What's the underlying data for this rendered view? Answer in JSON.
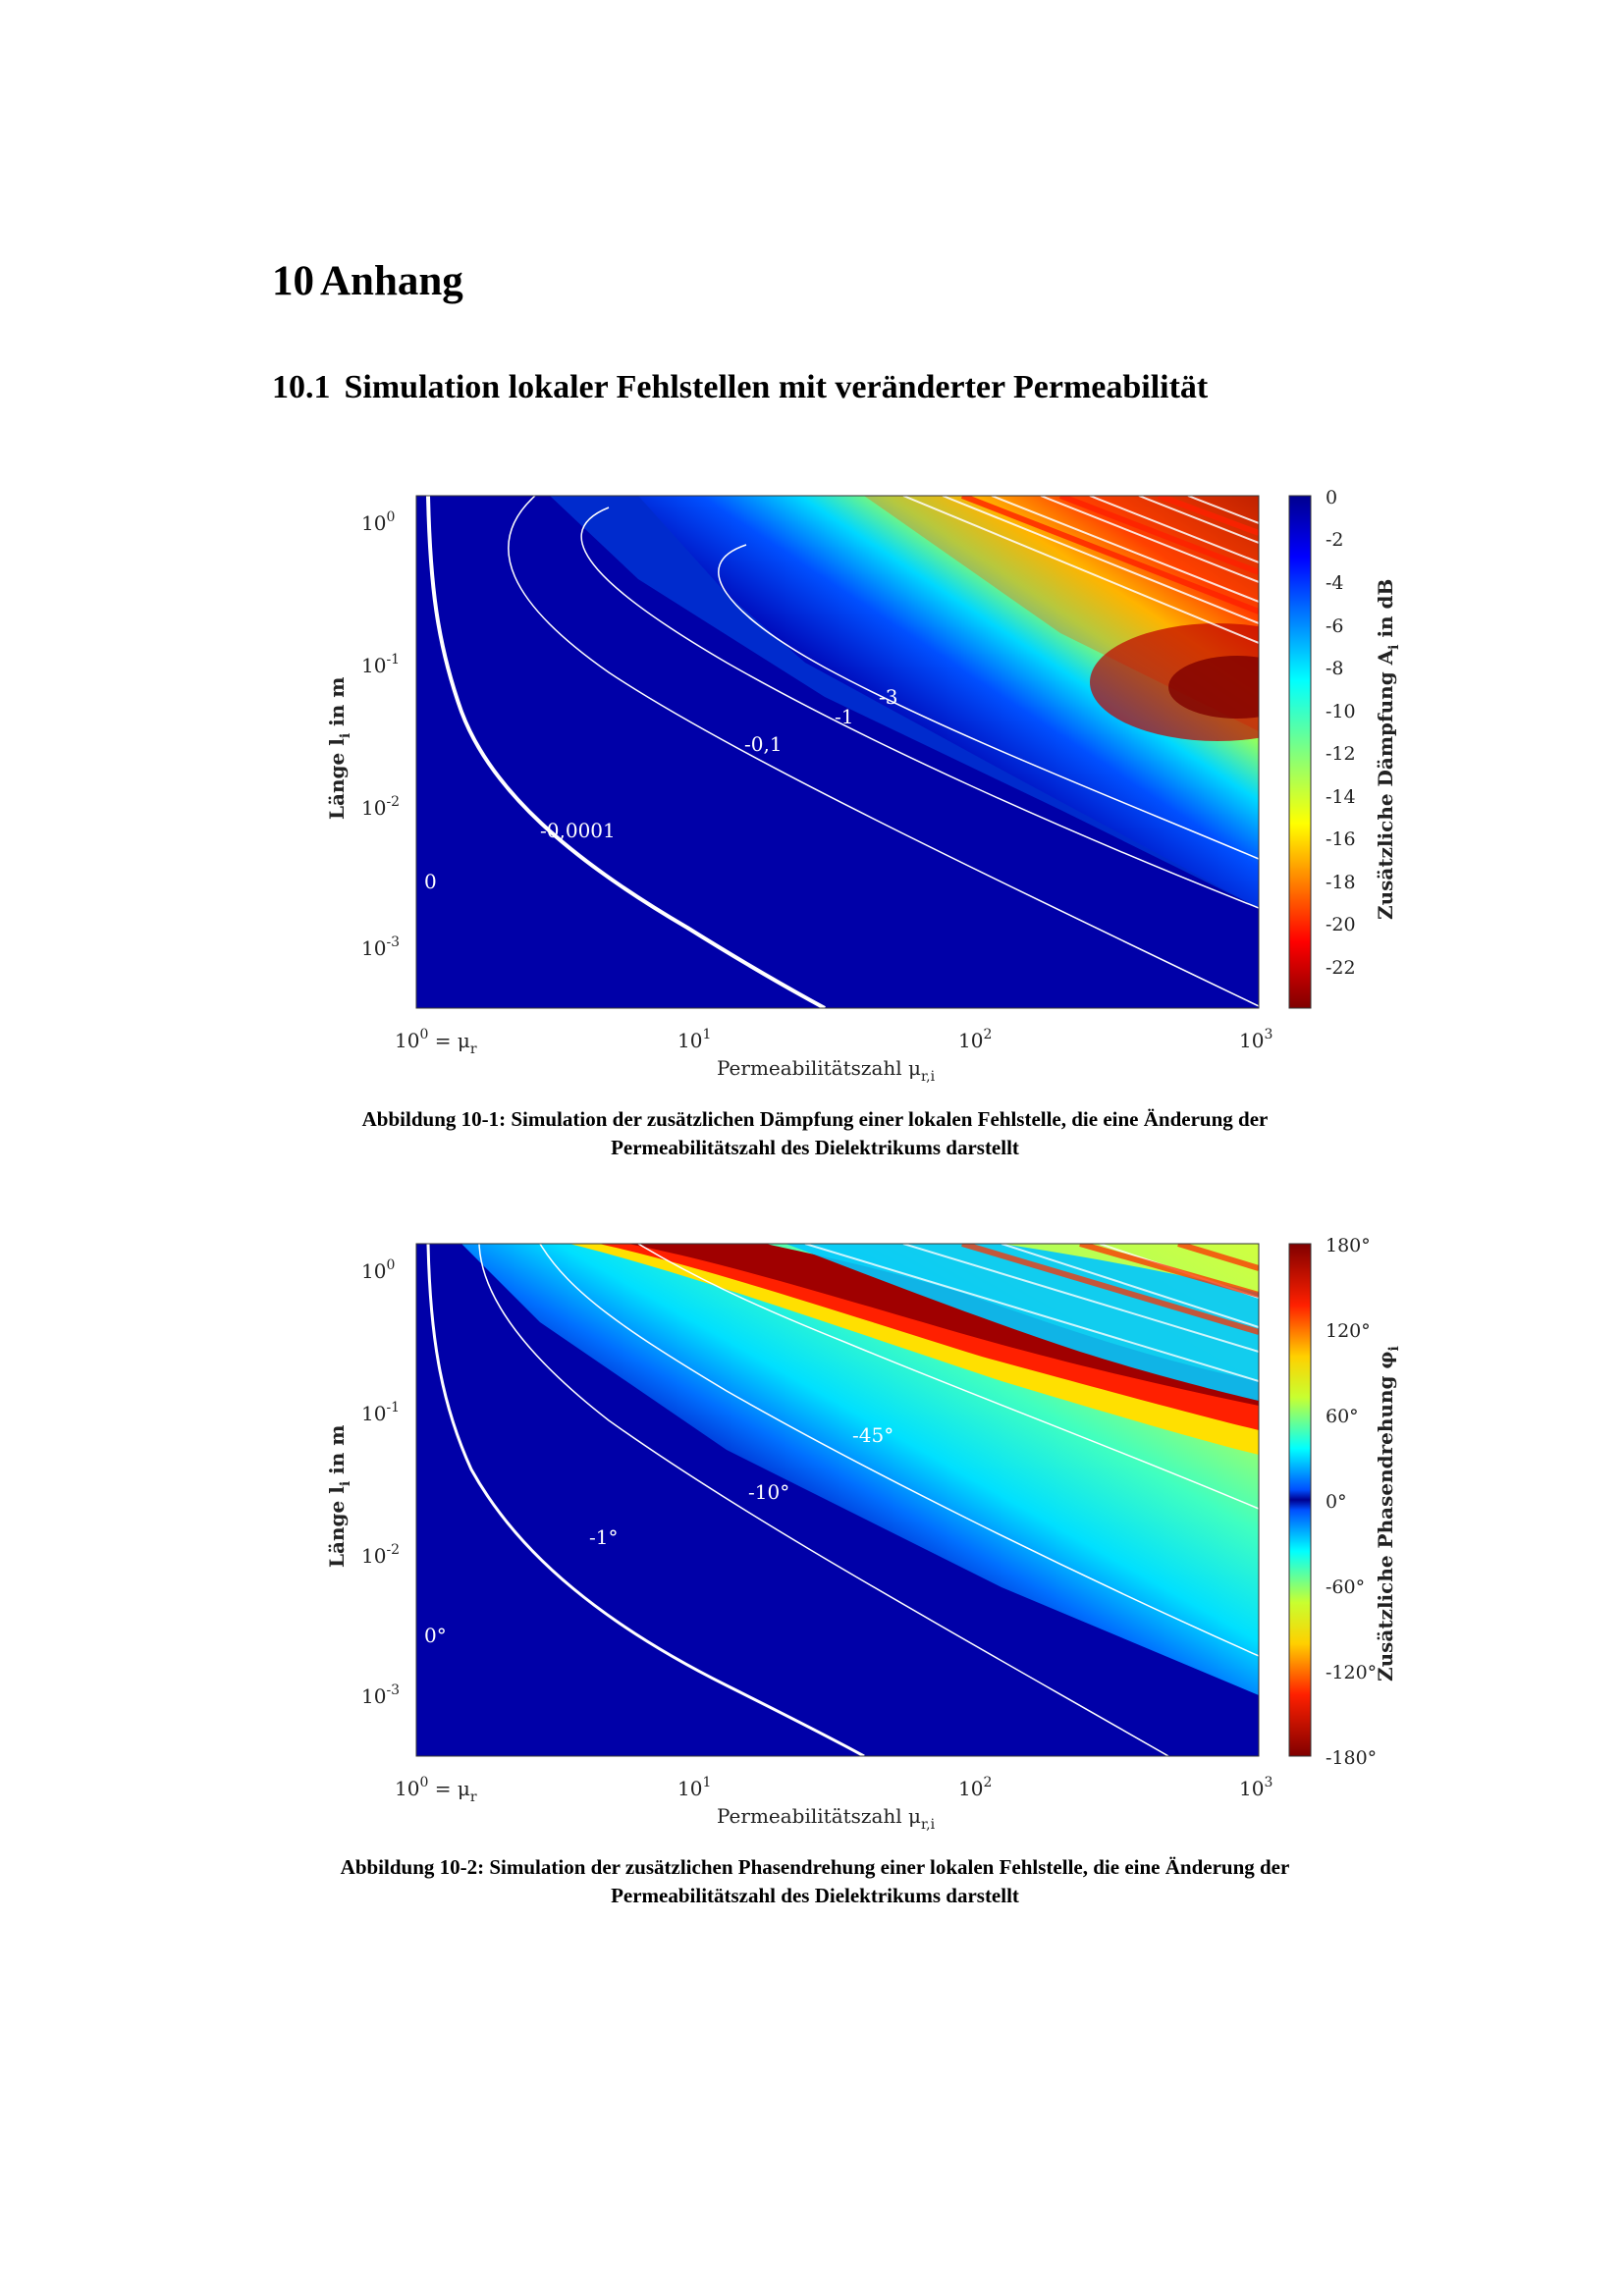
{
  "page": {
    "chapter_number": "10",
    "chapter_title": "Anhang",
    "section_number": "10.1",
    "section_title": "Simulation lokaler Fehlstellen mit veränderter Permeabilität"
  },
  "chart_data": [
    {
      "type": "heatmap",
      "x_axis": {
        "label": "Permeabilitätszahl μ",
        "label_sub": "r,i",
        "scale": "log",
        "range": [
          1,
          1000
        ],
        "ticks": [
          {
            "base": "10",
            "exp": "0",
            "suffix": " = μ",
            "suffix_sub": "r"
          },
          {
            "base": "10",
            "exp": "1"
          },
          {
            "base": "10",
            "exp": "2"
          },
          {
            "base": "10",
            "exp": "3"
          }
        ]
      },
      "y_axis": {
        "label_pre": "Länge l",
        "label_sub": "i",
        "label_post": " in m",
        "scale": "log",
        "ticks": [
          {
            "base": "10",
            "exp": "0"
          },
          {
            "base": "10",
            "exp": "-1"
          },
          {
            "base": "10",
            "exp": "-2"
          },
          {
            "base": "10",
            "exp": "-3"
          }
        ]
      },
      "colorbar": {
        "label_pre": "Zusätzliche Dämpfung A",
        "label_sub": "i",
        "label_post": " in dB",
        "colormap": "jet-reversed",
        "range": [
          -24,
          0
        ],
        "ticks": [
          "0",
          "-2",
          "-4",
          "-6",
          "-8",
          "-10",
          "-12",
          "-14",
          "-16",
          "-18",
          "-20",
          "-22"
        ]
      },
      "contour_labels": [
        "-3",
        "-1",
        "-0,1",
        "-0,0001",
        "0"
      ]
    },
    {
      "type": "heatmap",
      "x_axis": {
        "label": "Permeabilitätszahl μ",
        "label_sub": "r,i",
        "scale": "log",
        "range": [
          1,
          1000
        ],
        "ticks": [
          {
            "base": "10",
            "exp": "0",
            "suffix": " = μ",
            "suffix_sub": "r"
          },
          {
            "base": "10",
            "exp": "1"
          },
          {
            "base": "10",
            "exp": "2"
          },
          {
            "base": "10",
            "exp": "3"
          }
        ]
      },
      "y_axis": {
        "label_pre": "Länge l",
        "label_sub": "i",
        "label_post": " in m",
        "scale": "log",
        "ticks": [
          {
            "base": "10",
            "exp": "0"
          },
          {
            "base": "10",
            "exp": "-1"
          },
          {
            "base": "10",
            "exp": "-2"
          },
          {
            "base": "10",
            "exp": "-3"
          }
        ]
      },
      "colorbar": {
        "label_pre": "Zusätzliche Phasendrehung φ",
        "label_sub": "i",
        "label_post": "",
        "colormap": "jet-cyclic",
        "range": [
          -180,
          180
        ],
        "ticks": [
          "180°",
          "120°",
          "60°",
          "0°",
          "-60°",
          "-120°",
          "-180°"
        ]
      },
      "contour_labels": [
        "-45°",
        "-10°",
        "-1°",
        "0°"
      ]
    }
  ],
  "captions": [
    {
      "label": "Abbildung 10-1:",
      "line1": "Simulation der zusätzlichen Dämpfung einer lokalen Fehlstelle, die eine Änderung der",
      "line2": "Permeabilitätszahl des Dielektrikums darstellt"
    },
    {
      "label": "Abbildung 10-2:",
      "line1": "Simulation der zusätzlichen Phasendrehung einer lokalen Fehlstelle, die eine Änderung der",
      "line2": "Permeabilitätszahl des Dielektrikums darstellt"
    }
  ]
}
